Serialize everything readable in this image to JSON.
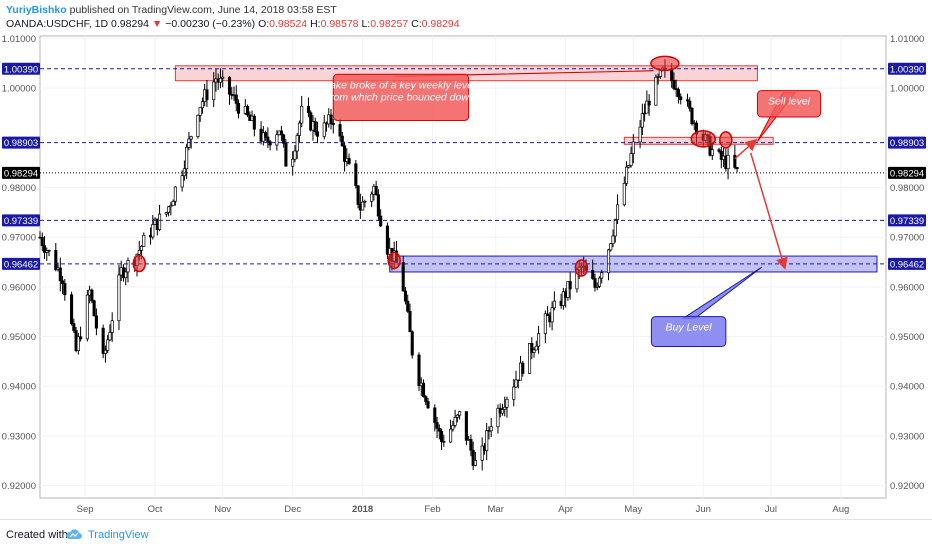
{
  "header": {
    "author": "YuriyBishko",
    "published_text": "published on TradingView.com, June 14, 2018 03:58 EST",
    "symbol": "OANDA:USDCHF, 1D",
    "last": "0.98294",
    "change_arrow": "▼",
    "change": "−0.00230 (−0.23%)",
    "o_label": "O:",
    "o_value": "0.98524",
    "h_label": "H:",
    "h_value": "0.98578",
    "l_label": "L:",
    "l_value": "0.98257",
    "c_label": "C:",
    "c_value": "0.98294"
  },
  "footer": {
    "created_with": "Created with",
    "brand": "TradingView",
    "logo_icon": "tradingview-cloud-icon"
  },
  "chart_data": {
    "type": "candlestick",
    "symbol": "OANDA:USDCHF",
    "timeframe": "1D",
    "ylim": [
      0.9175,
      1.0105
    ],
    "y_ticks": [
      "1.01000",
      "1.00000",
      "0.98000",
      "0.97000",
      "0.96000",
      "0.95000",
      "0.94000",
      "0.93000",
      "0.92000"
    ],
    "x_ticks": [
      "Sep",
      "Oct",
      "Nov",
      "Dec",
      "2018",
      "Feb",
      "Mar",
      "Apr",
      "May",
      "Jun",
      "Jul",
      "Aug"
    ],
    "x_tick_days": [
      20,
      51,
      81,
      112,
      143,
      174,
      202,
      233,
      263,
      294,
      324,
      355
    ],
    "x_span_days": [
      0,
      375
    ],
    "levels": [
      {
        "label": "1.00390",
        "value": 1.0039,
        "style": "dashed",
        "color": "#1a1aa6"
      },
      {
        "label": "0.98903",
        "value": 0.98903,
        "style": "dashed",
        "color": "#1a1aa6"
      },
      {
        "label": "0.98294",
        "value": 0.98294,
        "style": "dotted",
        "color": "#000000"
      },
      {
        "label": "0.97339",
        "value": 0.97339,
        "style": "dashed",
        "color": "#1a1aa6"
      },
      {
        "label": "0.96462",
        "value": 0.96462,
        "style": "dashed",
        "color": "#1a1aa6"
      }
    ],
    "zones": [
      {
        "name": "sell-zone-weekly",
        "x_from_day": 60,
        "x_to_day": 318,
        "y_top": 1.0045,
        "y_bottom": 1.0015,
        "fill": "#f8c9cc",
        "stroke": "#e53935"
      },
      {
        "name": "sell-zone",
        "x_from_day": 259,
        "x_to_day": 325,
        "y_top": 0.9901,
        "y_bottom": 0.9887,
        "fill": "#f8c9cc",
        "stroke": "#e53935"
      },
      {
        "name": "buy-zone",
        "x_from_day": 155,
        "x_to_day": 371,
        "y_top": 0.9662,
        "y_bottom": 0.963,
        "fill": "#b3b3f5",
        "stroke": "#1a1ab0"
      }
    ],
    "markers": [
      {
        "x_day": 44,
        "y": 0.9647
      },
      {
        "x_day": 157,
        "y": 0.9653
      },
      {
        "x_day": 240,
        "y": 0.9638
      },
      {
        "x_day": 277,
        "y": 1.005
      },
      {
        "x_day": 294,
        "y": 0.9898
      },
      {
        "x_day": 304,
        "y": 0.9896
      }
    ],
    "arrows": [
      {
        "from_day": 308,
        "from_y": 0.9858,
        "to_day": 317,
        "to_y": 0.9894
      },
      {
        "from_day": 315,
        "from_y": 0.987,
        "to_day": 330,
        "to_y": 0.964
      }
    ],
    "annotations": [
      {
        "text": "Fake broke of a key weekly level, from which price bounced down",
        "lines": [
          "Fake broke of a key weekly level,",
          "from which price bounced down"
        ],
        "kind": "sell",
        "from_day": 130,
        "to_day": 190,
        "y_top": 1.0028,
        "y_bottom": 0.9935
      },
      {
        "text": "Sell level",
        "lines": [
          "Sell level"
        ],
        "kind": "sell",
        "from_day": 318,
        "to_day": 346,
        "y_top": 0.9995,
        "y_bottom": 0.9942
      },
      {
        "text": "Buy Level",
        "lines": [
          "Buy Level"
        ],
        "kind": "buy",
        "from_day": 271,
        "to_day": 304,
        "y_top": 0.954,
        "y_bottom": 0.948
      }
    ],
    "anchors": [
      {
        "day": 0,
        "price": 0.97
      },
      {
        "day": 10,
        "price": 0.962
      },
      {
        "day": 16,
        "price": 0.947
      },
      {
        "day": 22,
        "price": 0.959
      },
      {
        "day": 28,
        "price": 0.945
      },
      {
        "day": 36,
        "price": 0.963
      },
      {
        "day": 42,
        "price": 0.966
      },
      {
        "day": 50,
        "price": 0.972
      },
      {
        "day": 56,
        "price": 0.975
      },
      {
        "day": 62,
        "price": 0.982
      },
      {
        "day": 70,
        "price": 0.996
      },
      {
        "day": 78,
        "price": 1.002
      },
      {
        "day": 84,
        "price": 0.999
      },
      {
        "day": 92,
        "price": 0.994
      },
      {
        "day": 100,
        "price": 0.989
      },
      {
        "day": 106,
        "price": 0.992
      },
      {
        "day": 110,
        "price": 0.983
      },
      {
        "day": 116,
        "price": 0.995
      },
      {
        "day": 124,
        "price": 0.991
      },
      {
        "day": 130,
        "price": 0.994
      },
      {
        "day": 136,
        "price": 0.985
      },
      {
        "day": 142,
        "price": 0.976
      },
      {
        "day": 148,
        "price": 0.98
      },
      {
        "day": 154,
        "price": 0.968
      },
      {
        "day": 160,
        "price": 0.963
      },
      {
        "day": 166,
        "price": 0.944
      },
      {
        "day": 172,
        "price": 0.937
      },
      {
        "day": 178,
        "price": 0.929
      },
      {
        "day": 186,
        "price": 0.934
      },
      {
        "day": 194,
        "price": 0.923
      },
      {
        "day": 200,
        "price": 0.933
      },
      {
        "day": 208,
        "price": 0.939
      },
      {
        "day": 216,
        "price": 0.946
      },
      {
        "day": 224,
        "price": 0.953
      },
      {
        "day": 232,
        "price": 0.958
      },
      {
        "day": 240,
        "price": 0.964
      },
      {
        "day": 246,
        "price": 0.96
      },
      {
        "day": 252,
        "price": 0.968
      },
      {
        "day": 258,
        "price": 0.979
      },
      {
        "day": 264,
        "price": 0.99
      },
      {
        "day": 270,
        "price": 0.998
      },
      {
        "day": 276,
        "price": 1.003
      },
      {
        "day": 282,
        "price": 1.001
      },
      {
        "day": 288,
        "price": 0.995
      },
      {
        "day": 294,
        "price": 0.99
      },
      {
        "day": 300,
        "price": 0.986
      },
      {
        "day": 305,
        "price": 0.985
      },
      {
        "day": 309,
        "price": 0.9829
      }
    ]
  }
}
